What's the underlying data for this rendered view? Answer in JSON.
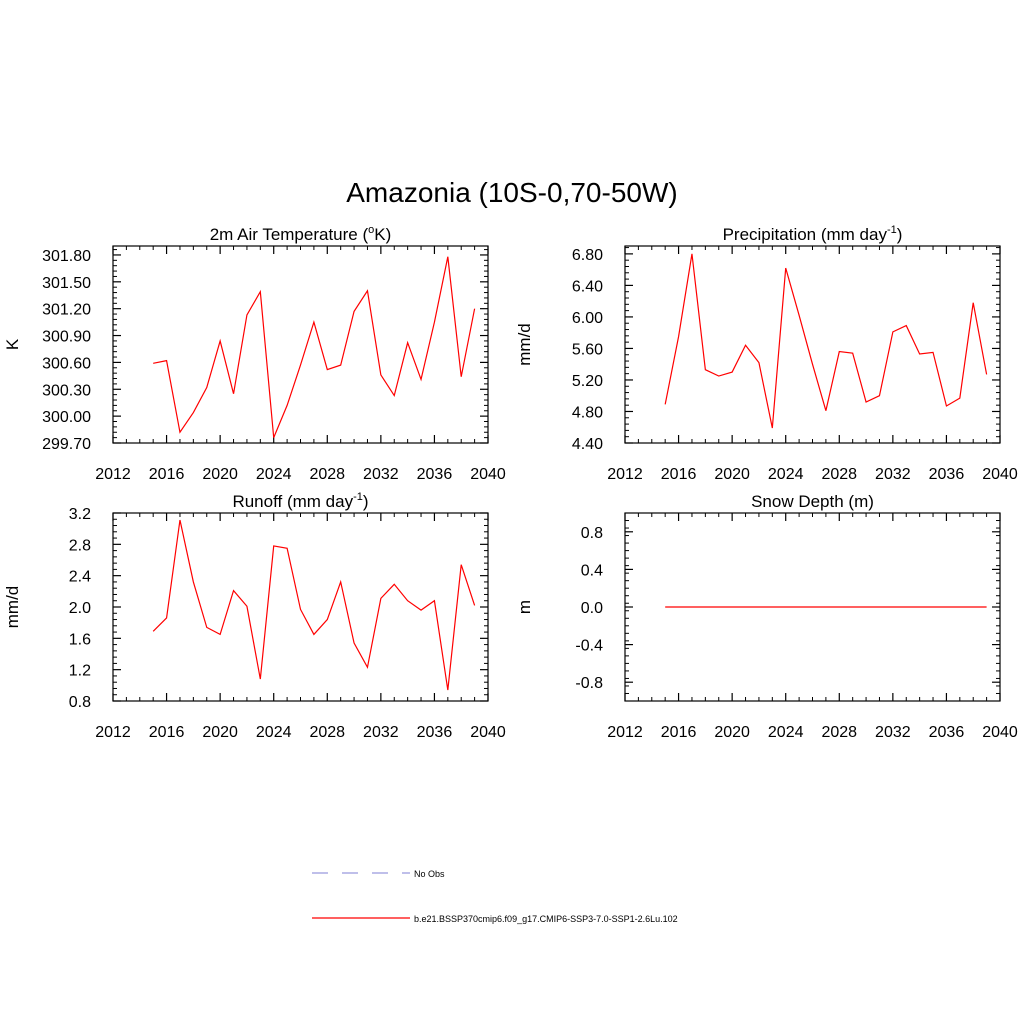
{
  "figure": {
    "title": "Amazonia (10S-0,70-50W)"
  },
  "legend": {
    "entries": [
      {
        "label": "No Obs",
        "color": "#9999dd",
        "dash": true
      },
      {
        "label": "b.e21.BSSP370cmip6.f09_g17.CMIP6-SSP3-7.0-SSP1-2.6Lu.102",
        "color": "#ff0000",
        "dash": false
      }
    ]
  },
  "chart_data": [
    {
      "id": "temperature",
      "type": "line",
      "title": "2m Air Temperature (°K)",
      "title_main": "2m Air Temperature (",
      "title_sup": "o",
      "title_tail": "K)",
      "xlabel": "",
      "ylabel": "K",
      "xlim": [
        2012,
        2040
      ],
      "ylim": [
        299.7,
        301.9
      ],
      "xticks": [
        2012,
        2016,
        2020,
        2024,
        2028,
        2032,
        2036,
        2040
      ],
      "yticks": [
        299.7,
        300.0,
        300.3,
        300.6,
        300.9,
        301.2,
        301.5,
        301.8
      ],
      "ytick_labels": [
        "299.70",
        "300.00",
        "300.30",
        "300.60",
        "300.90",
        "301.20",
        "301.50",
        "301.80"
      ],
      "series": [
        {
          "color": "#ff0000",
          "x": [
            2015,
            2016,
            2017,
            2018,
            2019,
            2020,
            2021,
            2022,
            2023,
            2024,
            2025,
            2026,
            2027,
            2028,
            2029,
            2030,
            2031,
            2032,
            2033,
            2034,
            2035,
            2036,
            2037,
            2038,
            2039
          ],
          "y": [
            300.59,
            300.62,
            299.82,
            300.04,
            300.32,
            300.84,
            300.25,
            301.13,
            301.39,
            299.76,
            300.12,
            300.57,
            301.05,
            300.52,
            300.57,
            301.17,
            301.4,
            300.46,
            300.23,
            300.82,
            300.41,
            301.05,
            301.78,
            300.44,
            301.2
          ]
        }
      ]
    },
    {
      "id": "precipitation",
      "type": "line",
      "title": "Precipitation (mm day-1)",
      "title_main": "Precipitation (mm day",
      "title_sup": "-1",
      "title_tail": ")",
      "xlabel": "",
      "ylabel": "mm/d",
      "xlim": [
        2012,
        2040
      ],
      "ylim": [
        4.4,
        6.9
      ],
      "xticks": [
        2012,
        2016,
        2020,
        2024,
        2028,
        2032,
        2036,
        2040
      ],
      "yticks": [
        4.4,
        4.8,
        5.2,
        5.6,
        6.0,
        6.4,
        6.8
      ],
      "ytick_labels": [
        "4.40",
        "4.80",
        "5.20",
        "5.60",
        "6.00",
        "6.40",
        "6.80"
      ],
      "series": [
        {
          "color": "#ff0000",
          "x": [
            2015,
            2016,
            2017,
            2018,
            2019,
            2020,
            2021,
            2022,
            2023,
            2024,
            2025,
            2026,
            2027,
            2028,
            2029,
            2030,
            2031,
            2032,
            2033,
            2034,
            2035,
            2036,
            2037,
            2038,
            2039
          ],
          "y": [
            4.89,
            5.75,
            6.8,
            5.33,
            5.25,
            5.3,
            5.64,
            5.42,
            4.59,
            6.62,
            6.02,
            5.4,
            4.81,
            5.56,
            5.54,
            4.92,
            5.0,
            5.81,
            5.89,
            5.53,
            5.55,
            4.87,
            4.97,
            6.18,
            5.27
          ]
        }
      ]
    },
    {
      "id": "runoff",
      "type": "line",
      "title": "Runoff (mm day-1)",
      "title_main": "Runoff (mm day",
      "title_sup": "-1",
      "title_tail": ")",
      "xlabel": "",
      "ylabel": "mm/d",
      "xlim": [
        2012,
        2040
      ],
      "ylim": [
        0.8,
        3.2
      ],
      "xticks": [
        2012,
        2016,
        2020,
        2024,
        2028,
        2032,
        2036,
        2040
      ],
      "yticks": [
        0.8,
        1.2,
        1.6,
        2.0,
        2.4,
        2.8,
        3.2
      ],
      "ytick_labels": [
        "0.8",
        "1.2",
        "1.6",
        "2.0",
        "2.4",
        "2.8",
        "3.2"
      ],
      "series": [
        {
          "color": "#ff0000",
          "x": [
            2015,
            2016,
            2017,
            2018,
            2019,
            2020,
            2021,
            2022,
            2023,
            2024,
            2025,
            2026,
            2027,
            2028,
            2029,
            2030,
            2031,
            2032,
            2033,
            2034,
            2035,
            2036,
            2037,
            2038,
            2039
          ],
          "y": [
            1.69,
            1.86,
            3.11,
            2.32,
            1.74,
            1.65,
            2.21,
            2.01,
            1.08,
            2.78,
            2.75,
            1.97,
            1.65,
            1.84,
            2.32,
            1.54,
            1.23,
            2.11,
            2.29,
            2.08,
            1.96,
            2.08,
            0.94,
            2.54,
            2.02
          ]
        }
      ]
    },
    {
      "id": "snow",
      "type": "line",
      "title": "Snow Depth (m)",
      "title_main": "Snow Depth (m)",
      "title_sup": "",
      "title_tail": "",
      "xlabel": "",
      "ylabel": "m",
      "xlim": [
        2012,
        2040
      ],
      "ylim": [
        -1.0,
        1.0
      ],
      "xticks": [
        2012,
        2016,
        2020,
        2024,
        2028,
        2032,
        2036,
        2040
      ],
      "yticks": [
        -0.8,
        -0.4,
        0.0,
        0.4,
        0.8
      ],
      "ytick_labels": [
        "-0.8",
        "-0.4",
        "0.0",
        "0.4",
        "0.8"
      ],
      "series": [
        {
          "color": "#ff0000",
          "x": [
            2015,
            2016,
            2017,
            2018,
            2019,
            2020,
            2021,
            2022,
            2023,
            2024,
            2025,
            2026,
            2027,
            2028,
            2029,
            2030,
            2031,
            2032,
            2033,
            2034,
            2035,
            2036,
            2037,
            2038,
            2039
          ],
          "y": [
            0,
            0,
            0,
            0,
            0,
            0,
            0,
            0,
            0,
            0,
            0,
            0,
            0,
            0,
            0,
            0,
            0,
            0,
            0,
            0,
            0,
            0,
            0,
            0,
            0
          ]
        }
      ]
    }
  ]
}
